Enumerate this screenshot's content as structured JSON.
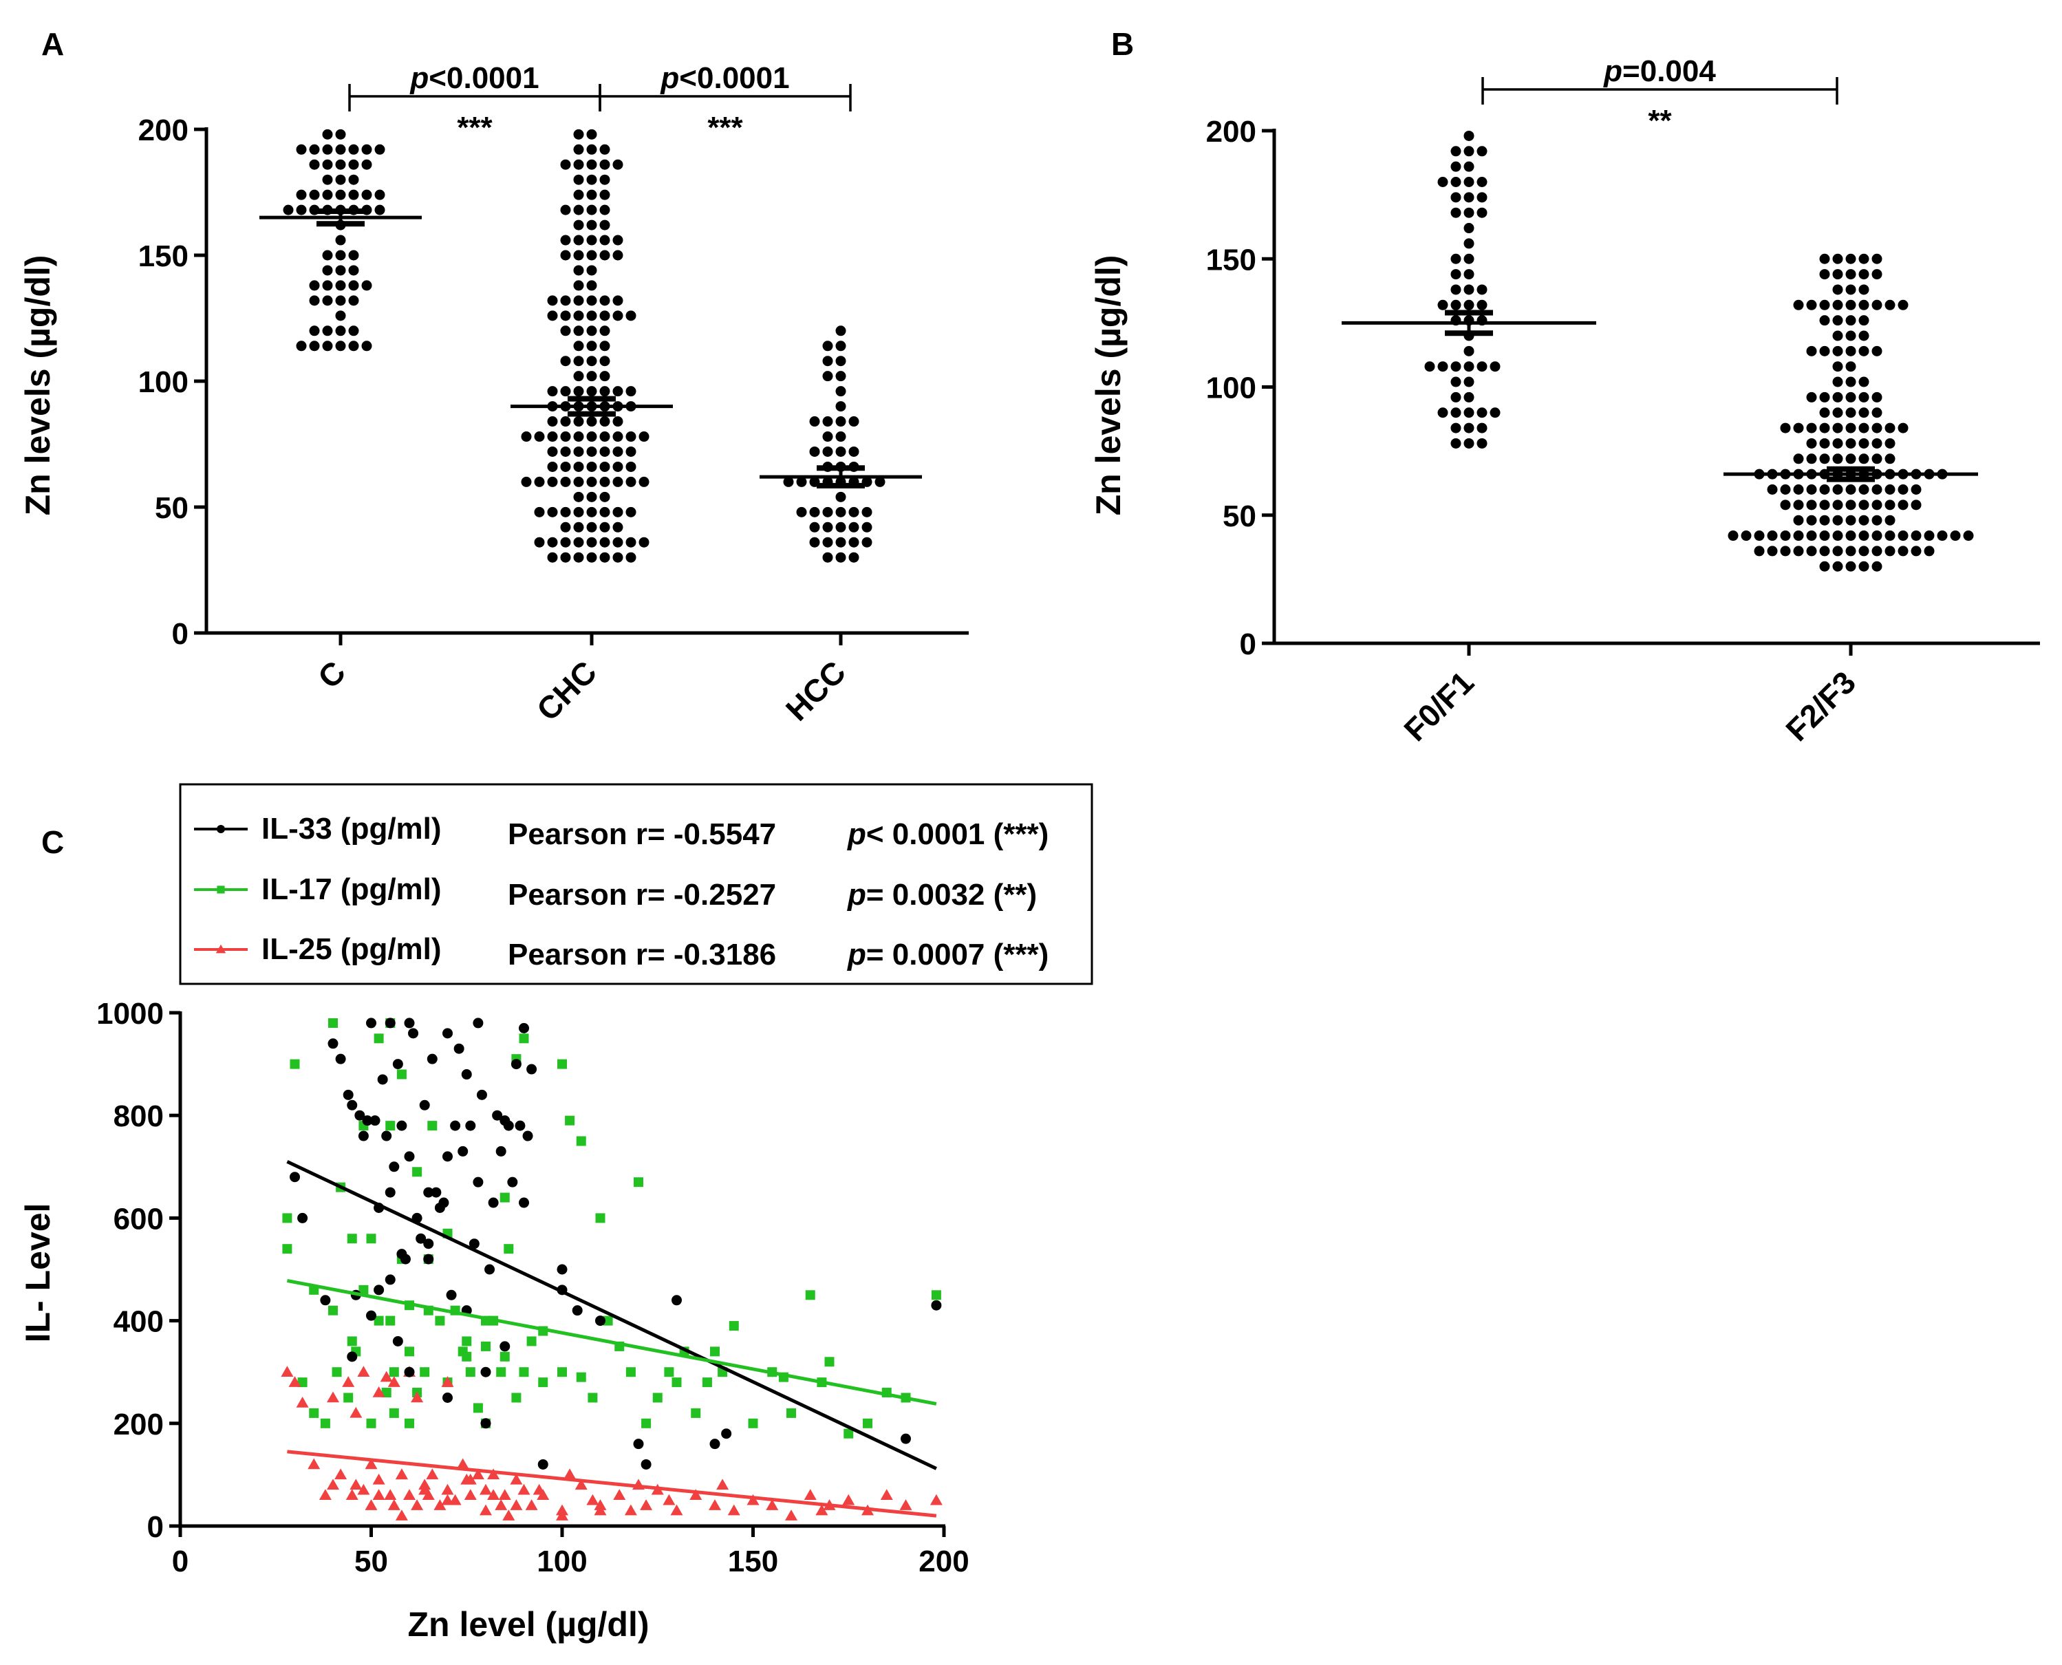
{
  "panel_labels": [
    "A",
    "B",
    "C"
  ],
  "chart_data": [
    {
      "panel": "A",
      "type": "scatter",
      "subtype": "dot-plot (mean ± SEM)",
      "title": "",
      "xlabel": "",
      "ylabel": "Zn levels (µg/dl)",
      "ylim": [
        0,
        200
      ],
      "yticks": [
        0,
        50,
        100,
        150,
        200
      ],
      "grid": false,
      "groups": [
        {
          "name": "C",
          "mean": 165,
          "sem": 2.5,
          "n": 60,
          "min": 110,
          "max": 200
        },
        {
          "name": "CHC",
          "mean": 90,
          "sem": 3,
          "n": 150,
          "min": 28,
          "max": 198
        },
        {
          "name": "HCC",
          "mean": 62,
          "sem": 3.5,
          "n": 50,
          "min": 28,
          "max": 120
        }
      ],
      "comparisons": [
        {
          "from": "C",
          "to": "CHC",
          "p_label": "p",
          "p_value": "<0.0001",
          "stars": "***"
        },
        {
          "from": "CHC",
          "to": "HCC",
          "p_label": "p",
          "p_value": "<0.0001",
          "stars": "***"
        }
      ]
    },
    {
      "panel": "B",
      "type": "scatter",
      "subtype": "dot-plot (mean ± SEM)",
      "title": "",
      "xlabel": "",
      "ylabel": "Zn levels (µg/dl)",
      "ylim": [
        0,
        200
      ],
      "yticks": [
        0,
        50,
        100,
        150,
        200
      ],
      "grid": false,
      "groups": [
        {
          "name": "F0/F1",
          "mean": 125,
          "sem": 4,
          "n": 55,
          "min": 76,
          "max": 198
        },
        {
          "name": "F2/F3",
          "mean": 66,
          "sem": 2,
          "n": 160,
          "min": 28,
          "max": 156
        }
      ],
      "comparisons": [
        {
          "from": "F0/F1",
          "to": "F2/F3",
          "p_label": "p",
          "p_value": "=0.004",
          "stars": "**"
        }
      ]
    },
    {
      "panel": "C",
      "type": "scatter",
      "subtype": "scatter with linear regression",
      "title": "",
      "xlabel": "Zn level (µg/dl)",
      "ylabel": "IL- Level",
      "xlim": [
        0,
        200
      ],
      "ylim": [
        0,
        1000
      ],
      "xticks": [
        0,
        50,
        100,
        150,
        200
      ],
      "yticks": [
        0,
        200,
        400,
        600,
        800,
        1000
      ],
      "grid": false,
      "legend_position": "top",
      "series": [
        {
          "name": "IL-33 (pg/ml)",
          "stat": "Pearson r= -0.5547",
          "p_label": "p",
          "p_value": "< 0.0001",
          "sig": "(***)",
          "color": "#000000",
          "marker": "circle",
          "fit": {
            "x": [
              28,
              198
            ],
            "y": [
              710,
              112
            ]
          },
          "points_x": [
            30,
            32,
            38,
            40,
            42,
            44,
            45,
            46,
            47,
            48,
            49,
            50,
            51,
            52,
            52,
            53,
            54,
            55,
            55,
            56,
            57,
            58,
            58,
            59,
            60,
            60,
            61,
            62,
            63,
            64,
            65,
            65,
            66,
            67,
            68,
            69,
            70,
            70,
            71,
            72,
            73,
            74,
            75,
            76,
            77,
            78,
            78,
            79,
            80,
            81,
            82,
            83,
            84,
            85,
            86,
            87,
            88,
            89,
            90,
            90,
            91,
            92,
            95,
            100,
            100,
            104,
            110,
            120,
            122,
            130,
            140,
            143,
            190,
            198,
            45,
            55,
            65,
            75,
            85,
            60,
            70,
            80,
            50,
            57
          ],
          "points_y": [
            680,
            600,
            440,
            940,
            910,
            840,
            820,
            450,
            800,
            760,
            790,
            980,
            790,
            620,
            460,
            870,
            760,
            980,
            650,
            700,
            900,
            530,
            780,
            520,
            980,
            720,
            960,
            600,
            560,
            820,
            650,
            550,
            910,
            650,
            620,
            630,
            960,
            720,
            450,
            780,
            930,
            730,
            880,
            780,
            550,
            670,
            980,
            840,
            300,
            500,
            630,
            800,
            730,
            790,
            780,
            670,
            900,
            780,
            630,
            970,
            760,
            890,
            120,
            500,
            460,
            420,
            400,
            160,
            120,
            440,
            160,
            180,
            170,
            430,
            330,
            480,
            520,
            420,
            350,
            300,
            250,
            200,
            410,
            360
          ]
        },
        {
          "name": "IL-17 (pg/ml)",
          "stat": "Pearson r= -0.2527",
          "p_label": "p",
          "p_value": "= 0.0032",
          "sig": "(**)",
          "color": "#22c020",
          "marker": "square",
          "fit": {
            "x": [
              28,
              198
            ],
            "y": [
              478,
              238
            ]
          },
          "points_x": [
            28,
            28,
            30,
            32,
            35,
            38,
            40,
            40,
            41,
            42,
            44,
            45,
            46,
            48,
            48,
            50,
            50,
            52,
            52,
            54,
            55,
            55,
            56,
            56,
            58,
            58,
            60,
            60,
            62,
            62,
            64,
            65,
            66,
            68,
            70,
            70,
            72,
            74,
            75,
            76,
            78,
            80,
            80,
            82,
            84,
            85,
            86,
            88,
            88,
            90,
            90,
            92,
            95,
            100,
            100,
            102,
            105,
            108,
            110,
            112,
            115,
            118,
            120,
            122,
            125,
            128,
            130,
            132,
            135,
            138,
            140,
            142,
            145,
            150,
            155,
            158,
            160,
            165,
            168,
            170,
            175,
            180,
            185,
            190,
            198,
            45,
            55,
            65,
            75,
            85,
            95,
            105,
            35,
            60,
            80
          ],
          "points_y": [
            600,
            540,
            900,
            280,
            220,
            200,
            980,
            420,
            300,
            660,
            250,
            560,
            340,
            460,
            780,
            200,
            560,
            950,
            400,
            260,
            780,
            980,
            300,
            220,
            520,
            880,
            430,
            200,
            690,
            260,
            300,
            520,
            780,
            400,
            570,
            280,
            420,
            340,
            330,
            300,
            230,
            400,
            200,
            400,
            300,
            640,
            540,
            910,
            250,
            300,
            950,
            360,
            280,
            900,
            300,
            790,
            750,
            250,
            600,
            400,
            350,
            300,
            670,
            200,
            250,
            300,
            280,
            340,
            220,
            280,
            340,
            300,
            390,
            200,
            300,
            290,
            220,
            450,
            280,
            320,
            180,
            200,
            260,
            250,
            450,
            360,
            400,
            420,
            360,
            330,
            380,
            290,
            460,
            340,
            350
          ]
        },
        {
          "name": "IL-25 (pg/ml)",
          "stat": "Pearson r= -0.3186",
          "p_label": "p",
          "p_value": "= 0.0007",
          "sig": "(***)",
          "color": "#f04040",
          "marker": "triangle",
          "fit": {
            "x": [
              28,
              198
            ],
            "y": [
              145,
              20
            ]
          },
          "points_x": [
            28,
            30,
            32,
            35,
            38,
            40,
            40,
            42,
            44,
            45,
            46,
            48,
            48,
            50,
            50,
            52,
            52,
            54,
            55,
            56,
            56,
            58,
            58,
            60,
            60,
            62,
            62,
            64,
            65,
            66,
            68,
            70,
            70,
            72,
            74,
            75,
            76,
            78,
            80,
            80,
            82,
            84,
            85,
            86,
            88,
            90,
            92,
            95,
            100,
            102,
            105,
            108,
            110,
            115,
            118,
            120,
            122,
            125,
            128,
            130,
            135,
            140,
            142,
            145,
            150,
            155,
            160,
            165,
            168,
            170,
            175,
            180,
            185,
            190,
            198,
            46,
            52,
            58,
            64,
            70,
            76,
            82,
            88,
            94,
            100,
            110
          ],
          "points_x_note": "",
          "points_y": [
            300,
            280,
            240,
            120,
            60,
            250,
            80,
            100,
            280,
            60,
            220,
            70,
            300,
            120,
            40,
            260,
            90,
            290,
            60,
            40,
            280,
            100,
            20,
            60,
            300,
            40,
            250,
            80,
            60,
            100,
            40,
            70,
            280,
            50,
            120,
            90,
            60,
            100,
            70,
            30,
            100,
            40,
            60,
            20,
            90,
            70,
            40,
            60,
            30,
            100,
            80,
            50,
            40,
            60,
            30,
            80,
            40,
            70,
            50,
            30,
            60,
            40,
            80,
            30,
            50,
            40,
            20,
            60,
            30,
            40,
            50,
            30,
            60,
            40,
            50,
            80,
            60,
            100,
            70,
            50,
            90,
            60,
            40,
            70,
            20,
            30
          ]
        }
      ]
    }
  ]
}
